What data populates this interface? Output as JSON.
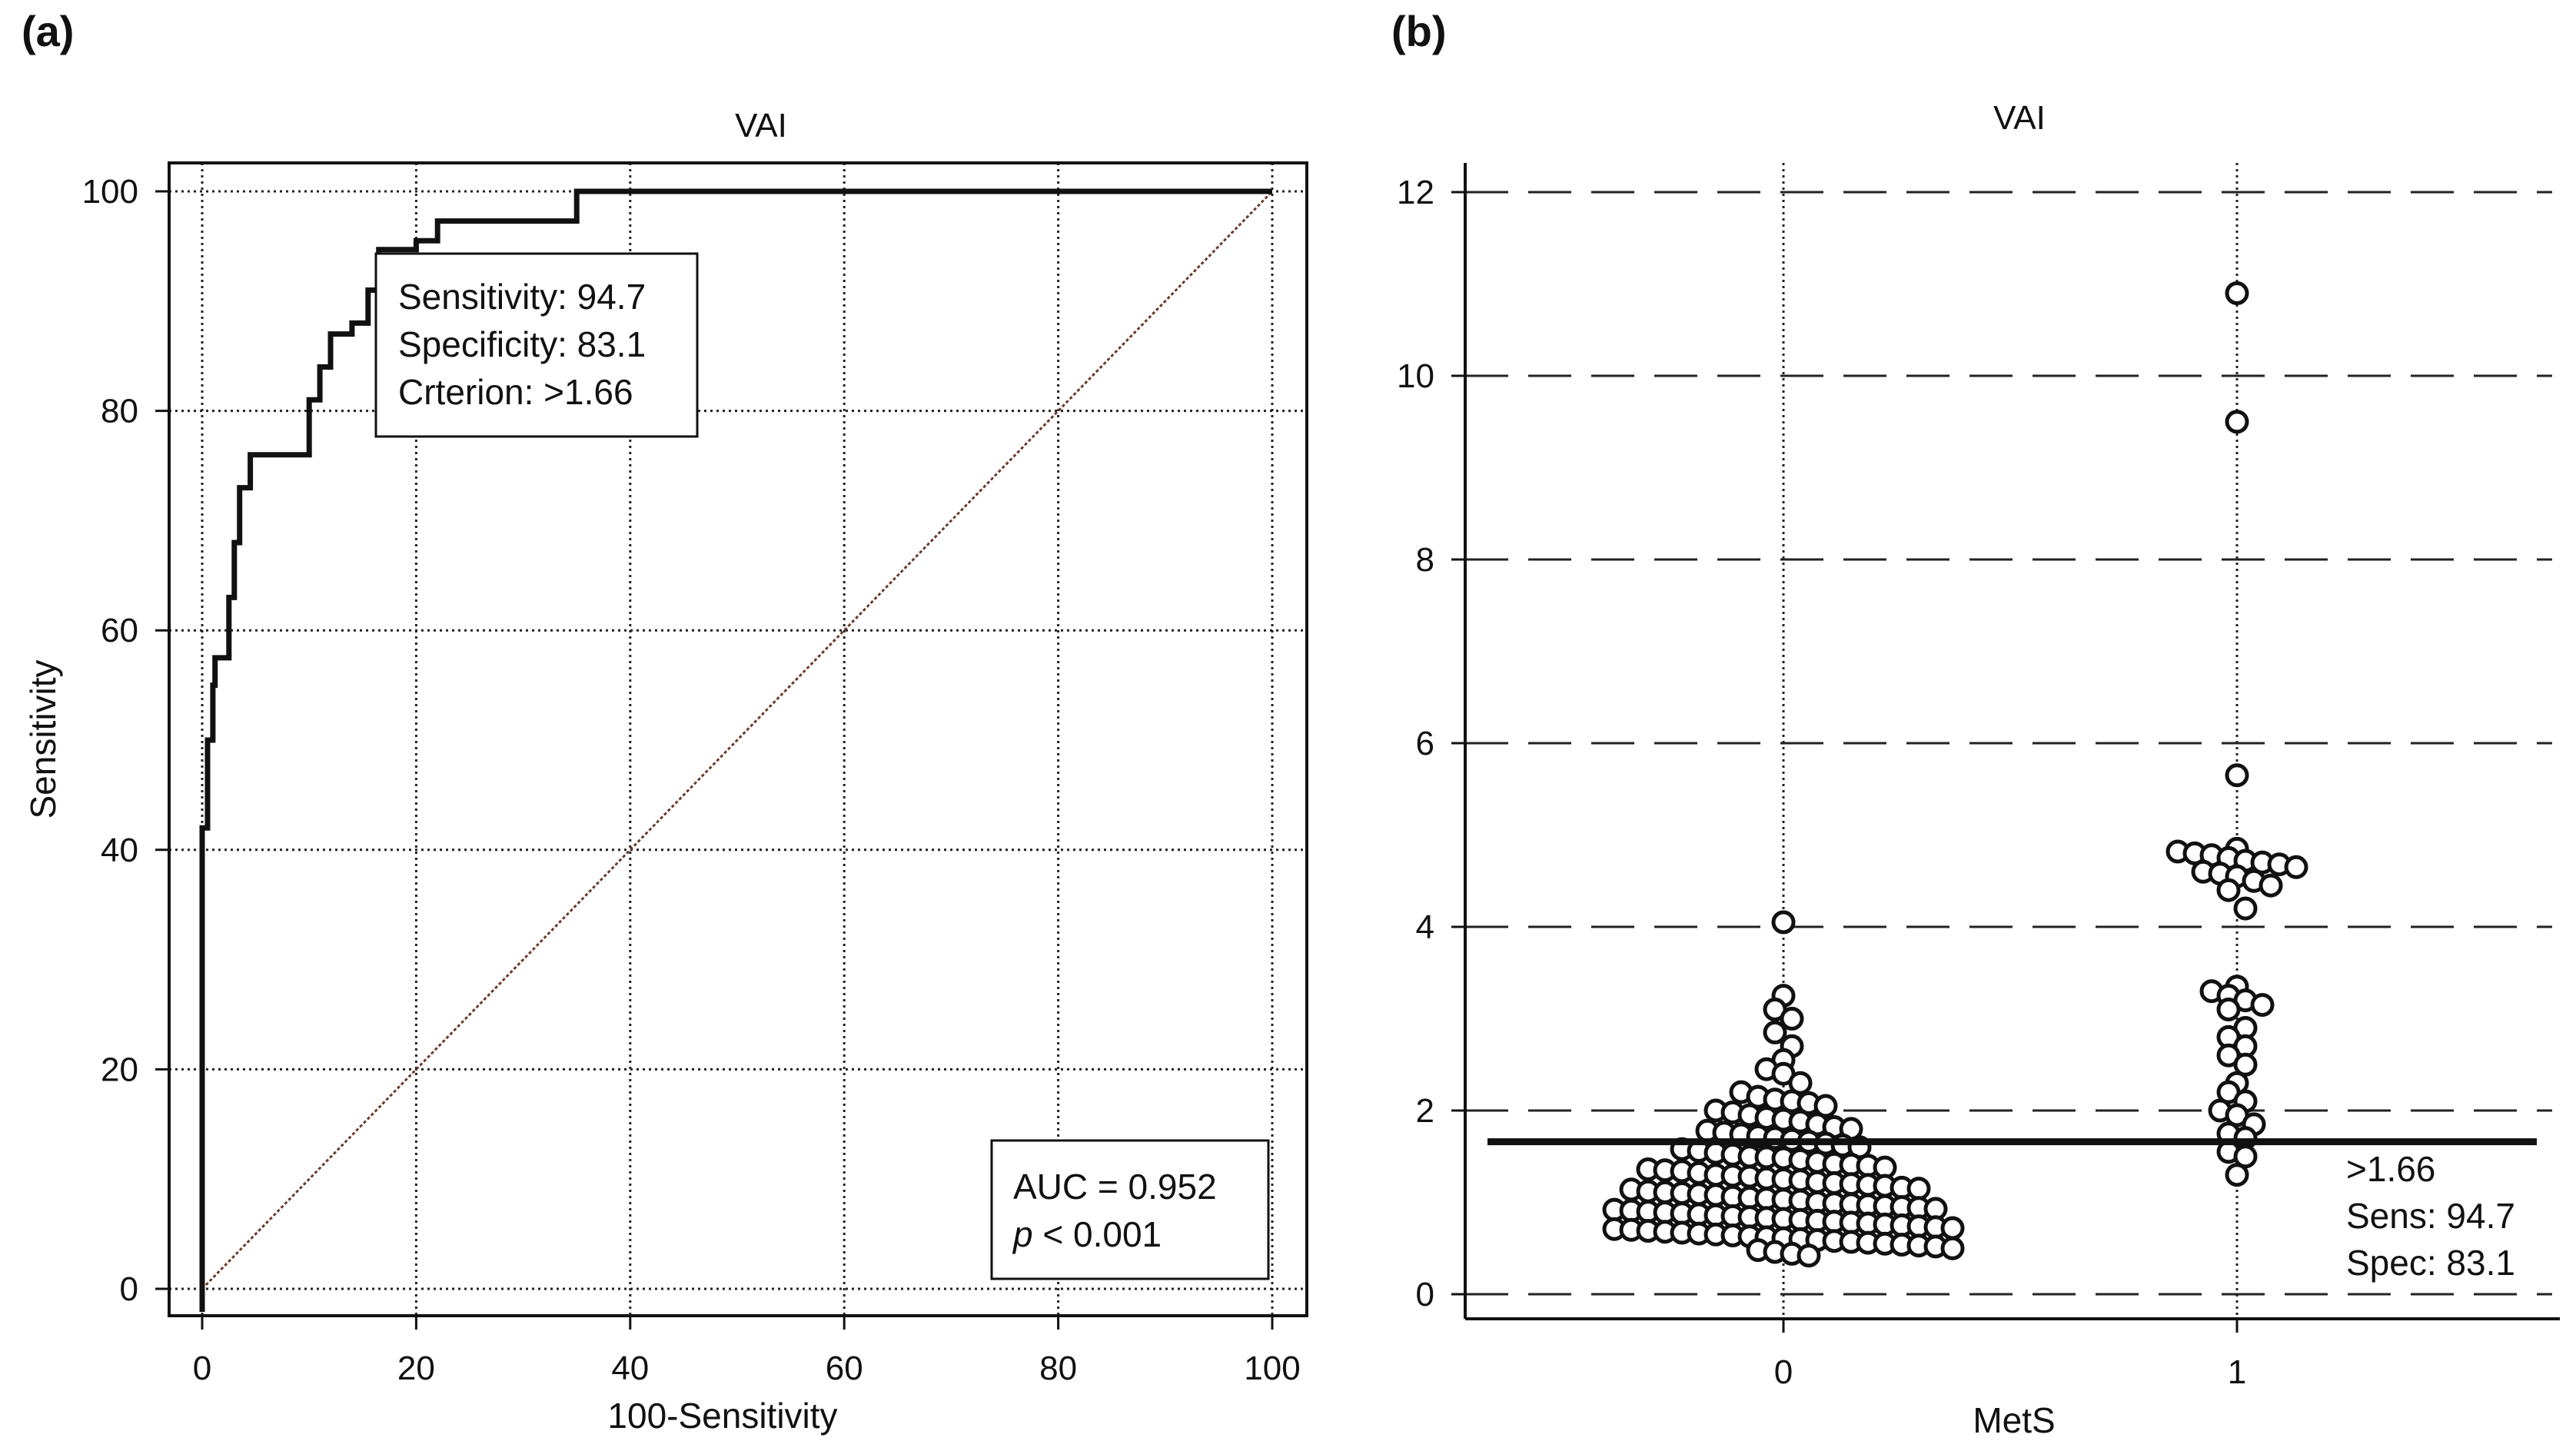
{
  "panels": {
    "a": {
      "letter": "(a)"
    },
    "b": {
      "letter": "(b)"
    }
  },
  "chart_data": [
    {
      "type": "line",
      "subtype": "roc",
      "title": "VAI",
      "xlabel": "100-Sensitivity",
      "ylabel": "Sensitivity",
      "xlim": [
        0,
        100
      ],
      "ylim": [
        0,
        100
      ],
      "xticks": [
        "0",
        "20",
        "40",
        "60",
        "80",
        "100"
      ],
      "yticks": [
        "0",
        "20",
        "40",
        "60",
        "80",
        "100"
      ],
      "grid": true,
      "series": [
        {
          "x": [
            0,
            0,
            0.5,
            0.5,
            1,
            1,
            1.2,
            1.2,
            2.5,
            2.5,
            3,
            3,
            3.5,
            3.5,
            4.5,
            4.5,
            10,
            10,
            11,
            11,
            12,
            12,
            14,
            14,
            15.5,
            15.5,
            16.5,
            16.5,
            20,
            20,
            22,
            22,
            35,
            35,
            100
          ],
          "y": [
            0,
            42,
            42,
            50,
            50,
            55,
            55,
            57.5,
            57.5,
            63,
            63,
            68,
            68,
            73,
            73,
            76,
            76,
            81,
            81,
            84,
            84,
            87,
            87,
            88,
            88,
            91,
            91,
            94.7,
            94.7,
            95.5,
            95.5,
            97.3,
            97.3,
            100,
            100
          ]
        },
        {
          "style": "dotted-reference",
          "x": [
            0,
            100
          ],
          "y": [
            0,
            100
          ]
        }
      ],
      "annotations": {
        "criterion_box": {
          "lines": [
            "Sensitivity: 94.7",
            "Specificity: 83.1",
            "Crterion: >1.66"
          ]
        },
        "auc_box": {
          "auc": "AUC = 0.952",
          "p_symbol": "p",
          "p_rest": " < 0.001"
        }
      }
    },
    {
      "type": "scatter",
      "subtype": "dot-plot",
      "title": "VAI",
      "xlabel": "MetS",
      "ylabel": "",
      "categories": [
        "0",
        "1"
      ],
      "ylim": [
        0,
        12
      ],
      "yticks": [
        "0",
        "2",
        "4",
        "6",
        "8",
        "10",
        "12"
      ],
      "grid": true,
      "cutoff": 1.66,
      "cutoff_labels": [
        ">1.66",
        "Sens: 94.7",
        "Spec: 83.1"
      ],
      "groups": [
        {
          "category": "0",
          "values": [
            4.05,
            3.25,
            3.1,
            3.0,
            2.85,
            2.7,
            2.55,
            2.45,
            2.4,
            2.3,
            2.2,
            2.15,
            2.12,
            2.1,
            2.08,
            2.05,
            2.0,
            1.98,
            1.95,
            1.92,
            1.9,
            1.88,
            1.85,
            1.82,
            1.8,
            1.78,
            1.76,
            1.74,
            1.72,
            1.7,
            1.68,
            1.66,
            1.64,
            1.62,
            1.6,
            1.58,
            1.56,
            1.54,
            1.52,
            1.5,
            1.49,
            1.48,
            1.46,
            1.44,
            1.42,
            1.41,
            1.4,
            1.38,
            1.36,
            1.35,
            1.34,
            1.32,
            1.3,
            1.29,
            1.28,
            1.26,
            1.25,
            1.24,
            1.22,
            1.21,
            1.2,
            1.19,
            1.18,
            1.16,
            1.15,
            1.14,
            1.12,
            1.11,
            1.1,
            1.09,
            1.08,
            1.06,
            1.05,
            1.04,
            1.03,
            1.02,
            1.0,
            0.99,
            0.98,
            0.97,
            0.96,
            0.95,
            0.94,
            0.93,
            0.92,
            0.91,
            0.9,
            0.89,
            0.88,
            0.87,
            0.86,
            0.85,
            0.84,
            0.83,
            0.82,
            0.81,
            0.8,
            0.79,
            0.78,
            0.77,
            0.76,
            0.75,
            0.74,
            0.73,
            0.72,
            0.71,
            0.7,
            0.69,
            0.68,
            0.67,
            0.66,
            0.65,
            0.64,
            0.63,
            0.62,
            0.61,
            0.6,
            0.59,
            0.58,
            0.57,
            0.56,
            0.55,
            0.54,
            0.53,
            0.52,
            0.5,
            0.48,
            0.46,
            0.44,
            0.42
          ]
        },
        {
          "category": "1",
          "values": [
            10.9,
            9.5,
            5.65,
            4.85,
            4.82,
            4.8,
            4.78,
            4.75,
            4.72,
            4.7,
            4.68,
            4.65,
            4.6,
            4.58,
            4.55,
            4.5,
            4.45,
            4.4,
            4.2,
            3.35,
            3.3,
            3.25,
            3.2,
            3.15,
            3.1,
            2.9,
            2.8,
            2.7,
            2.6,
            2.5,
            2.3,
            2.2,
            2.1,
            2.0,
            1.95,
            1.85,
            1.75,
            1.7,
            1.55,
            1.5,
            1.3
          ]
        }
      ]
    }
  ]
}
